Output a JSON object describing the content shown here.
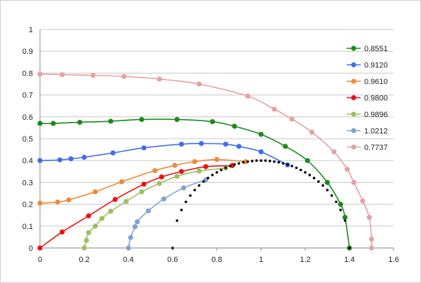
{
  "chart_data": {
    "type": "line",
    "title": "",
    "xlabel": "",
    "ylabel": "",
    "xlim": [
      0,
      1.6
    ],
    "ylim": [
      0,
      1
    ],
    "xticks": [
      "0",
      "0.2",
      "0.4",
      "0.6",
      "0.8",
      "1",
      "1.2",
      "1.4",
      "1.6"
    ],
    "yticks": [
      "0",
      "0.1",
      "0.2",
      "0.3",
      "0.4",
      "0.5",
      "0.6",
      "0.7",
      "0.8",
      "0.9",
      "1"
    ],
    "grid": "horizontal",
    "legend": "top-right",
    "series": [
      {
        "name": "0.8551",
        "color": "#1a8a1a",
        "points": [
          [
            0,
            0.57
          ],
          [
            0.06,
            0.57
          ],
          [
            0.18,
            0.575
          ],
          [
            0.32,
            0.58
          ],
          [
            0.46,
            0.588
          ],
          [
            0.62,
            0.588
          ],
          [
            0.78,
            0.578
          ],
          [
            0.88,
            0.557
          ],
          [
            1.0,
            0.52
          ],
          [
            1.11,
            0.465
          ],
          [
            1.21,
            0.4
          ],
          [
            1.3,
            0.3
          ],
          [
            1.36,
            0.2
          ],
          [
            1.38,
            0.14
          ],
          [
            1.4,
            0.0
          ]
        ]
      },
      {
        "name": "0.9120",
        "color": "#3f6ff0",
        "points": [
          [
            0,
            0.4
          ],
          [
            0.09,
            0.403
          ],
          [
            0.14,
            0.408
          ],
          [
            0.2,
            0.415
          ],
          [
            0.33,
            0.435
          ],
          [
            0.47,
            0.458
          ],
          [
            0.64,
            0.475
          ],
          [
            0.73,
            0.478
          ],
          [
            0.84,
            0.475
          ],
          [
            0.9,
            0.465
          ],
          [
            1.0,
            0.44
          ],
          [
            1.12,
            0.38
          ]
        ]
      },
      {
        "name": "0.9610",
        "color": "#ee8a3a",
        "points": [
          [
            0,
            0.205
          ],
          [
            0.08,
            0.21
          ],
          [
            0.13,
            0.22
          ],
          [
            0.25,
            0.257
          ],
          [
            0.37,
            0.303
          ],
          [
            0.52,
            0.354
          ],
          [
            0.61,
            0.378
          ],
          [
            0.7,
            0.395
          ],
          [
            0.8,
            0.405
          ],
          [
            0.93,
            0.395
          ]
        ]
      },
      {
        "name": "0.9800",
        "color": "#f01010",
        "points": [
          [
            0,
            0
          ],
          [
            0.1,
            0.073
          ],
          [
            0.22,
            0.147
          ],
          [
            0.34,
            0.222
          ],
          [
            0.47,
            0.292
          ],
          [
            0.55,
            0.325
          ],
          [
            0.64,
            0.35
          ],
          [
            0.75,
            0.372
          ],
          [
            0.87,
            0.377
          ]
        ]
      },
      {
        "name": "0.9896",
        "color": "#9cc060",
        "points": [
          [
            0.2,
            0
          ],
          [
            0.21,
            0.035
          ],
          [
            0.22,
            0.07
          ],
          [
            0.25,
            0.1
          ],
          [
            0.28,
            0.135
          ],
          [
            0.32,
            0.168
          ],
          [
            0.39,
            0.213
          ],
          [
            0.46,
            0.257
          ],
          [
            0.54,
            0.295
          ],
          [
            0.62,
            0.328
          ],
          [
            0.72,
            0.352
          ],
          [
            0.84,
            0.365
          ]
        ]
      },
      {
        "name": "1.0212",
        "color": "#7fa2d8",
        "points": [
          [
            0.4,
            0
          ],
          [
            0.41,
            0.048
          ],
          [
            0.43,
            0.097
          ],
          [
            0.44,
            0.12
          ],
          [
            0.49,
            0.17
          ],
          [
            0.56,
            0.224
          ],
          [
            0.65,
            0.275
          ],
          [
            0.75,
            0.312
          ]
        ]
      },
      {
        "name": "0.7737",
        "color": "#e8a0a0",
        "points": [
          [
            0,
            0.795
          ],
          [
            0.1,
            0.793
          ],
          [
            0.24,
            0.79
          ],
          [
            0.38,
            0.785
          ],
          [
            0.54,
            0.773
          ],
          [
            0.72,
            0.75
          ],
          [
            0.94,
            0.695
          ],
          [
            1.06,
            0.635
          ],
          [
            1.14,
            0.59
          ],
          [
            1.23,
            0.53
          ],
          [
            1.33,
            0.44
          ],
          [
            1.39,
            0.36
          ],
          [
            1.42,
            0.3
          ],
          [
            1.46,
            0.215
          ],
          [
            1.49,
            0.14
          ],
          [
            1.5,
            0.04
          ],
          [
            1.5,
            0
          ]
        ]
      }
    ],
    "dots": {
      "color": "#000000",
      "points": [
        [
          0.6,
          0
        ],
        [
          0.62,
          0.125
        ],
        [
          0.64,
          0.174
        ],
        [
          0.66,
          0.211
        ],
        [
          0.68,
          0.24
        ],
        [
          0.7,
          0.265
        ],
        [
          0.72,
          0.286
        ],
        [
          0.74,
          0.304
        ],
        [
          0.76,
          0.32
        ],
        [
          0.78,
          0.334
        ],
        [
          0.8,
          0.346
        ],
        [
          0.82,
          0.357
        ],
        [
          0.84,
          0.367
        ],
        [
          0.86,
          0.375
        ],
        [
          0.88,
          0.382
        ],
        [
          0.9,
          0.387
        ],
        [
          0.92,
          0.392
        ],
        [
          0.94,
          0.395
        ],
        [
          0.96,
          0.398
        ],
        [
          0.98,
          0.4
        ],
        [
          1.0,
          0.4
        ],
        [
          1.02,
          0.4
        ],
        [
          1.04,
          0.398
        ],
        [
          1.06,
          0.395
        ],
        [
          1.08,
          0.392
        ],
        [
          1.1,
          0.387
        ],
        [
          1.12,
          0.382
        ],
        [
          1.14,
          0.375
        ],
        [
          1.16,
          0.367
        ],
        [
          1.18,
          0.357
        ],
        [
          1.2,
          0.346
        ],
        [
          1.22,
          0.334
        ],
        [
          1.24,
          0.32
        ],
        [
          1.26,
          0.304
        ],
        [
          1.28,
          0.286
        ],
        [
          1.3,
          0.265
        ],
        [
          1.32,
          0.24
        ],
        [
          1.34,
          0.211
        ],
        [
          1.36,
          0.174
        ],
        [
          1.38,
          0.125
        ],
        [
          1.4,
          0
        ]
      ]
    }
  }
}
